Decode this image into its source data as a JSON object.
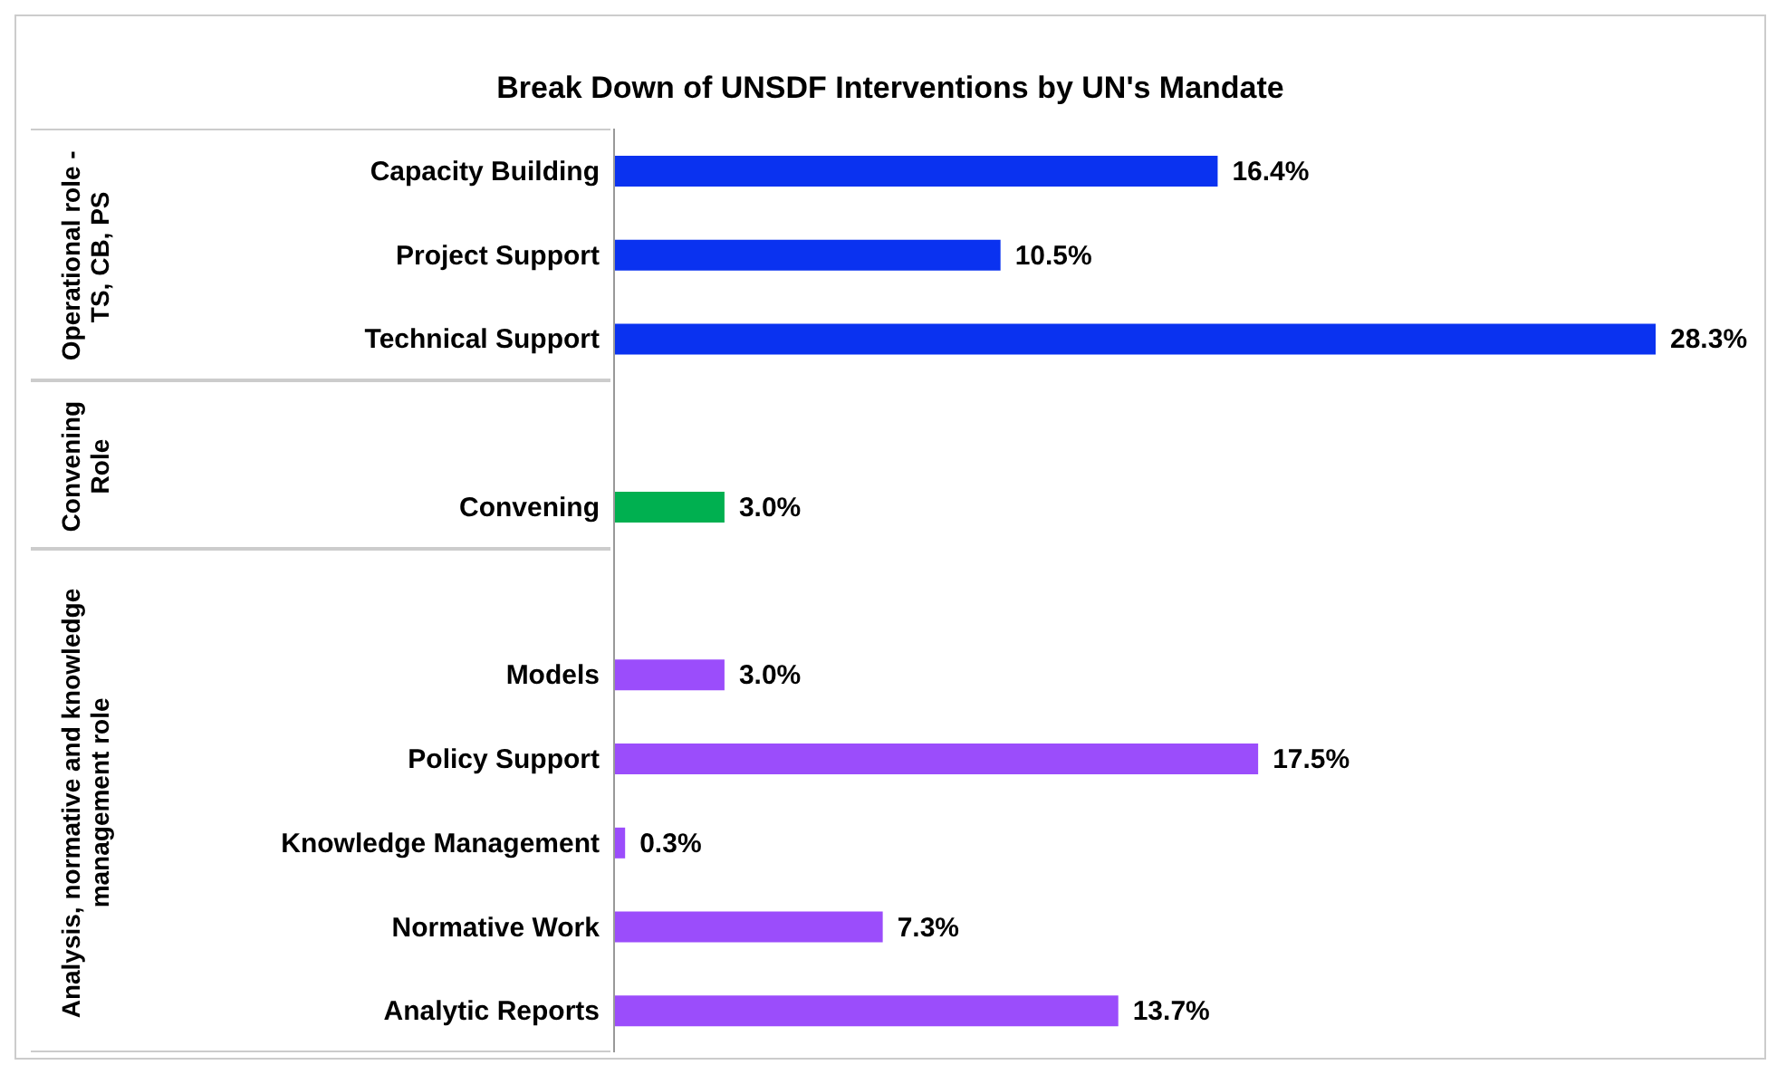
{
  "chart_data": {
    "type": "bar",
    "orientation": "horizontal",
    "title": "Break Down of UNSDF Interventions by UN's Mandate",
    "categories": [
      "Capacity Building",
      "Project Support",
      "Technical Support",
      null,
      "Convening",
      null,
      "Models",
      "Policy Support",
      "Knowledge Management",
      "Normative Work",
      "Analytic Reports"
    ],
    "values": [
      16.4,
      10.5,
      28.3,
      null,
      3.0,
      null,
      3.0,
      17.5,
      0.3,
      7.3,
      13.7
    ],
    "value_labels": [
      "16.4%",
      "10.5%",
      "28.3%",
      null,
      "3.0%",
      null,
      "3.0%",
      "17.5%",
      "0.3%",
      "7.3%",
      "13.7%"
    ],
    "colors": [
      "#0a32f0",
      "#0a32f0",
      "#0a32f0",
      "#0a32f0",
      "#00b050",
      "#9b4dfb",
      "#9b4dfb",
      "#9b4dfb",
      "#9b4dfb",
      "#9b4dfb",
      "#9b4dfb"
    ],
    "annotations": [
      "Operational role - TS, CB, PS",
      "Convening Role",
      "Analysis, normative and knowledge management role"
    ]
  }
}
